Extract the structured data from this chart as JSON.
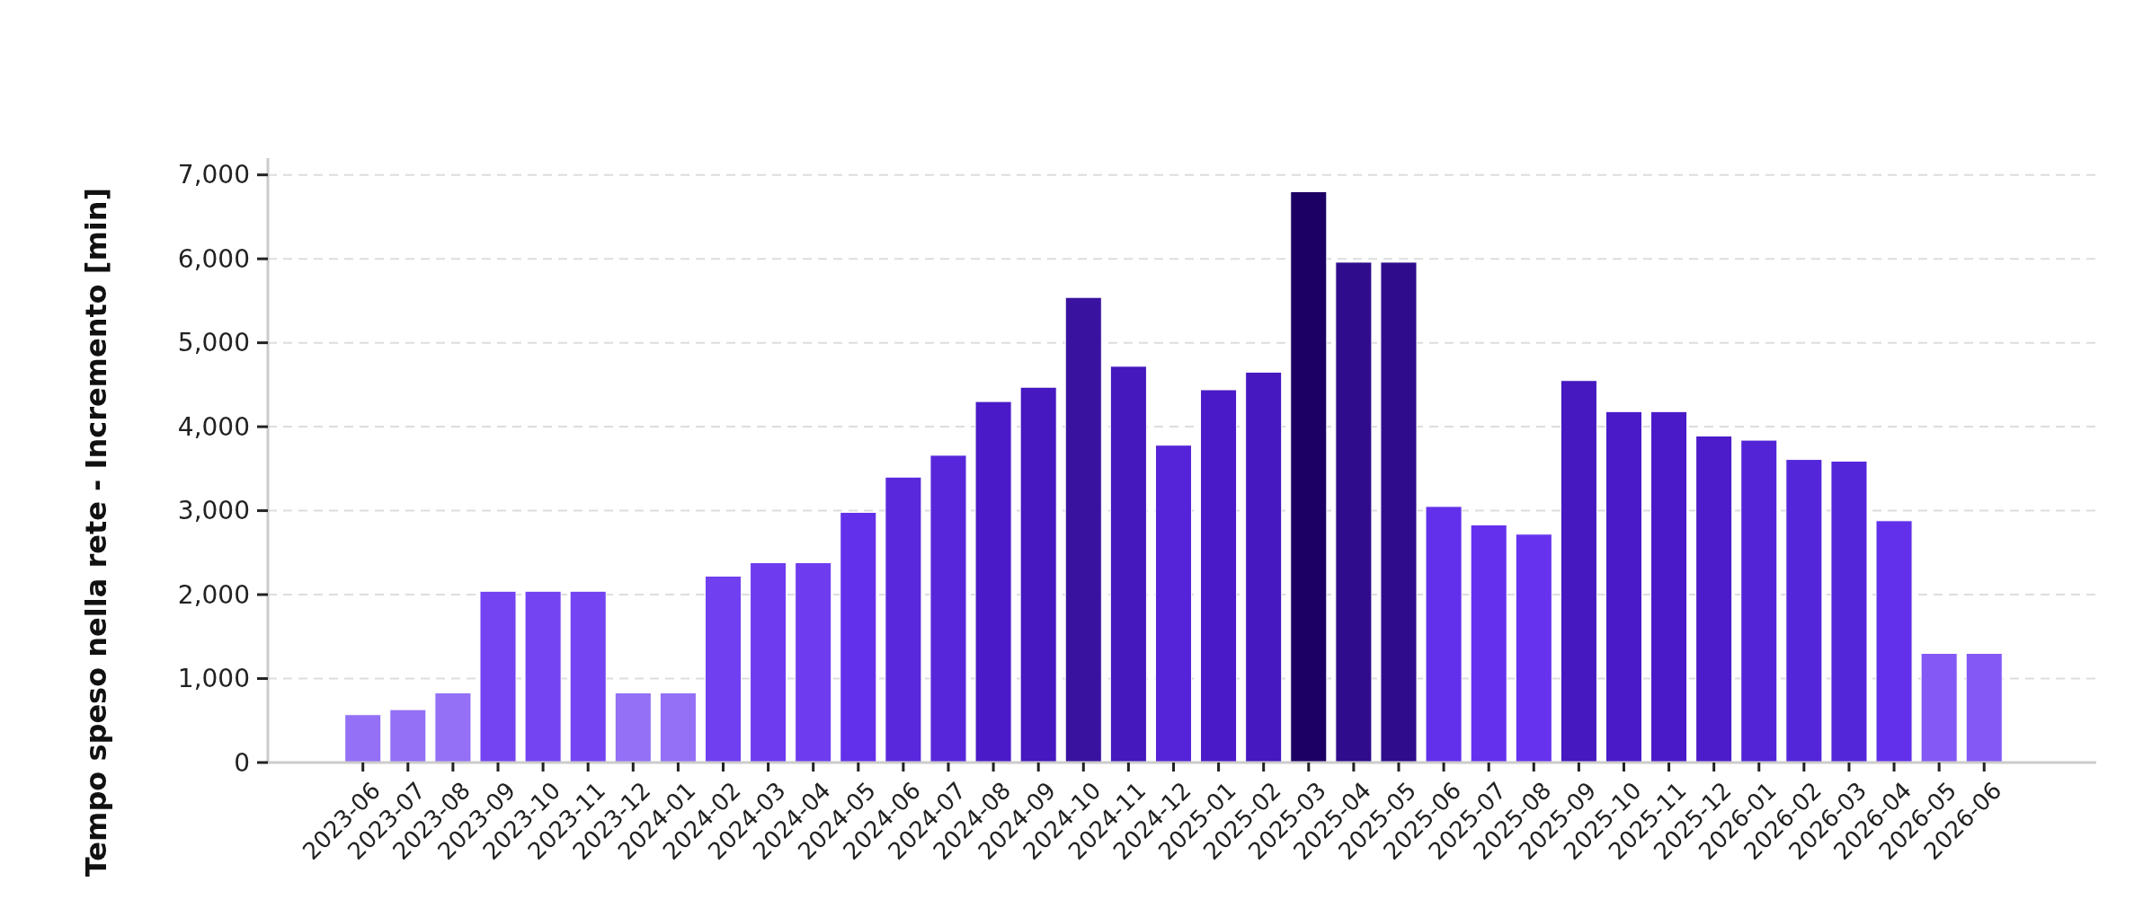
{
  "chart_data": {
    "type": "bar",
    "ylabel": "Tempo speso nella rete - Incremento [min]",
    "categories": [
      "2023-06",
      "2023-07",
      "2023-08",
      "2023-09",
      "2023-10",
      "2023-11",
      "2023-12",
      "2024-01",
      "2024-02",
      "2024-03",
      "2024-04",
      "2024-05",
      "2024-06",
      "2024-07",
      "2024-08",
      "2024-09",
      "2024-10",
      "2024-11",
      "2024-12",
      "2025-01",
      "2025-02",
      "2025-03",
      "2025-04",
      "2025-05",
      "2025-06",
      "2025-07",
      "2025-08",
      "2025-09",
      "2025-10",
      "2025-11",
      "2025-12",
      "2026-01",
      "2026-02",
      "2026-03",
      "2026-04",
      "2026-05",
      "2026-06"
    ],
    "values": [
      570,
      630,
      830,
      2040,
      2040,
      2040,
      830,
      830,
      2220,
      2380,
      2380,
      2980,
      3400,
      3660,
      4300,
      4470,
      5540,
      4720,
      3780,
      4440,
      4650,
      6800,
      5960,
      5960,
      3050,
      2830,
      2720,
      4550,
      4180,
      4180,
      3890,
      3840,
      3610,
      3590,
      2880,
      1300,
      1300
    ],
    "colors": [
      "#9370f5",
      "#9370f5",
      "#9370f5",
      "#7444f2",
      "#7444f2",
      "#7444f2",
      "#9370f5",
      "#9370f5",
      "#7040f0",
      "#6e3cee",
      "#6e3cee",
      "#6230ea",
      "#5a28dc",
      "#5826da",
      "#4a1ac8",
      "#4518c0",
      "#3a12a0",
      "#4418bc",
      "#5524d8",
      "#4a1ac8",
      "#4518c0",
      "#1c0064",
      "#2e0c8c",
      "#2e0c8c",
      "#6230ea",
      "#6430ee",
      "#6632ee",
      "#4518c0",
      "#4a1ac8",
      "#4a1ac8",
      "#4c1cca",
      "#5224d6",
      "#5426da",
      "#5426da",
      "#6230ea",
      "#8358f5",
      "#8358f5"
    ],
    "ylim": [
      0,
      7200
    ],
    "yticks": [
      {
        "value": 0,
        "label": "0"
      },
      {
        "value": 1000,
        "label": "1,000"
      },
      {
        "value": 2000,
        "label": "2,000"
      },
      {
        "value": 3000,
        "label": "3,000"
      },
      {
        "value": 4000,
        "label": "4,000"
      },
      {
        "value": 5000,
        "label": "5,000"
      },
      {
        "value": 6000,
        "label": "6,000"
      },
      {
        "value": 7000,
        "label": "7,000"
      }
    ],
    "grid": "y"
  }
}
